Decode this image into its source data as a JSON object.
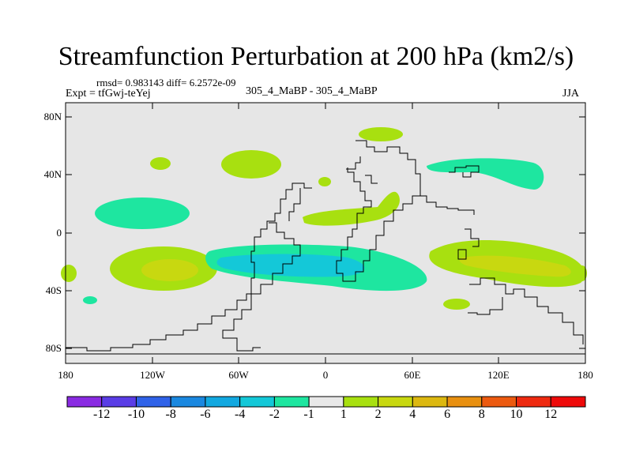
{
  "title": "Streamfunction Perturbation at 200 hPa (km2/s)",
  "stats": "rmsd= 0.983143 diff= 6.2572e-09",
  "experiment": "Expt = tfGwj-teYej",
  "subtitle": "305_4_MaBP - 305_4_MaBP",
  "season": "JJA",
  "lat_ticks": [
    "80N",
    "40N",
    "0",
    "40S",
    "80S"
  ],
  "lon_ticks": [
    "180",
    "120W",
    "60W",
    "0",
    "60E",
    "120E",
    "180"
  ],
  "colorbar": {
    "labels": [
      "-12",
      "-10",
      "-8",
      "-6",
      "-4",
      "-2",
      "-1",
      "1",
      "2",
      "4",
      "6",
      "8",
      "10",
      "12"
    ],
    "colors": [
      "#8a2be2",
      "#5a3de6",
      "#2f62e8",
      "#1a88e0",
      "#12a8e0",
      "#14c8d8",
      "#1ee6a0",
      "#e8e8e8",
      "#a8e010",
      "#c8d810",
      "#dcb810",
      "#e89010",
      "#ec5a10",
      "#ee2a10",
      "#ee0a0a"
    ]
  },
  "chart_data": {
    "type": "heatmap",
    "projection": "cylindrical-equidistant",
    "lon_range": [
      -180,
      180
    ],
    "lat_range": [
      -90,
      90
    ],
    "background_value_range": [
      -1,
      1
    ],
    "features": [
      {
        "region": "Southern Hemisphere tropics, Atlantic / South America",
        "value_range": [
          -4,
          -2
        ]
      },
      {
        "region": "South Pacific west of South America",
        "value_range": [
          2,
          4
        ]
      },
      {
        "region": "Indian Ocean / Australia subtropics",
        "value_range": [
          2,
          4
        ]
      },
      {
        "region": "North Pacific subtropics",
        "value_range": [
          -2,
          -1
        ]
      },
      {
        "region": "Northern Hemisphere midlatitudes, Africa / Middle East",
        "value_range": [
          1,
          2
        ]
      }
    ]
  }
}
